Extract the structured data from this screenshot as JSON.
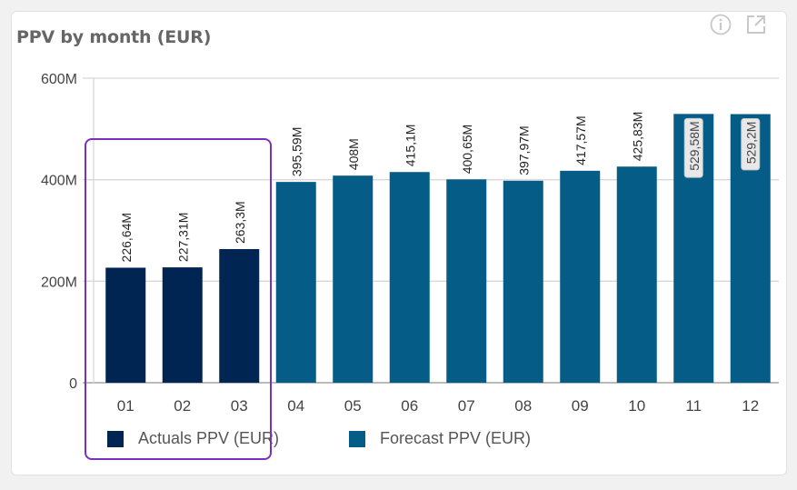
{
  "widget": {
    "title": "PPV by month (EUR)",
    "icons": [
      "info-icon",
      "open-external-icon"
    ]
  },
  "colors": {
    "actuals": "#012552",
    "forecast": "#055c87",
    "highlight": "#7b2fbf",
    "grid": "#d8d8d8",
    "label_bg": "#e8e8e8"
  },
  "chart_data": {
    "type": "bar",
    "title": "PPV by month (EUR)",
    "xlabel": "",
    "ylabel": "",
    "ylim": [
      0,
      600
    ],
    "y_unit": "M",
    "yticks": [
      0,
      200,
      400,
      600
    ],
    "ytick_labels": [
      "0",
      "200M",
      "400M",
      "600M"
    ],
    "grid": true,
    "legend_position": "bottom",
    "categories": [
      "01",
      "02",
      "03",
      "04",
      "05",
      "06",
      "07",
      "08",
      "09",
      "10",
      "11",
      "12"
    ],
    "values": [
      226.64,
      227.31,
      263.3,
      395.59,
      408,
      415.1,
      400.65,
      397.97,
      417.57,
      425.83,
      529.58,
      529.2
    ],
    "data_labels": [
      "226,64M",
      "227,31M",
      "263,3M",
      "395,59M",
      "408M",
      "415,1M",
      "400,65M",
      "397,97M",
      "417,57M",
      "425,83M",
      "529,58M",
      "529,2M"
    ],
    "series_of_bar": [
      "actuals",
      "actuals",
      "actuals",
      "forecast",
      "forecast",
      "forecast",
      "forecast",
      "forecast",
      "forecast",
      "forecast",
      "forecast",
      "forecast"
    ],
    "series": [
      {
        "key": "actuals",
        "name": "Actuals PPV (EUR)"
      },
      {
        "key": "forecast",
        "name": "Forecast PPV (EUR)"
      }
    ]
  }
}
